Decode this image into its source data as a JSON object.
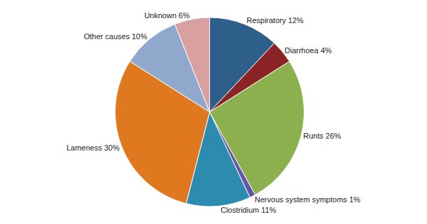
{
  "chart_data": {
    "type": "pie",
    "categories": [
      "Respiratory 12%",
      "Diarrhoea 4%",
      "Runts 26%",
      "Nervous system symptoms 1%",
      "Clostridium 11%",
      "Lameness 30%",
      "Other causes 10%",
      "Unknown 6%"
    ],
    "values": [
      12,
      4,
      26,
      1,
      11,
      30,
      10,
      6
    ],
    "colors": [
      "#2e5f8a",
      "#8b2525",
      "#8db04e",
      "#6655aa",
      "#2e8bb0",
      "#e07820",
      "#8fa8cc",
      "#d9a0a0"
    ]
  }
}
